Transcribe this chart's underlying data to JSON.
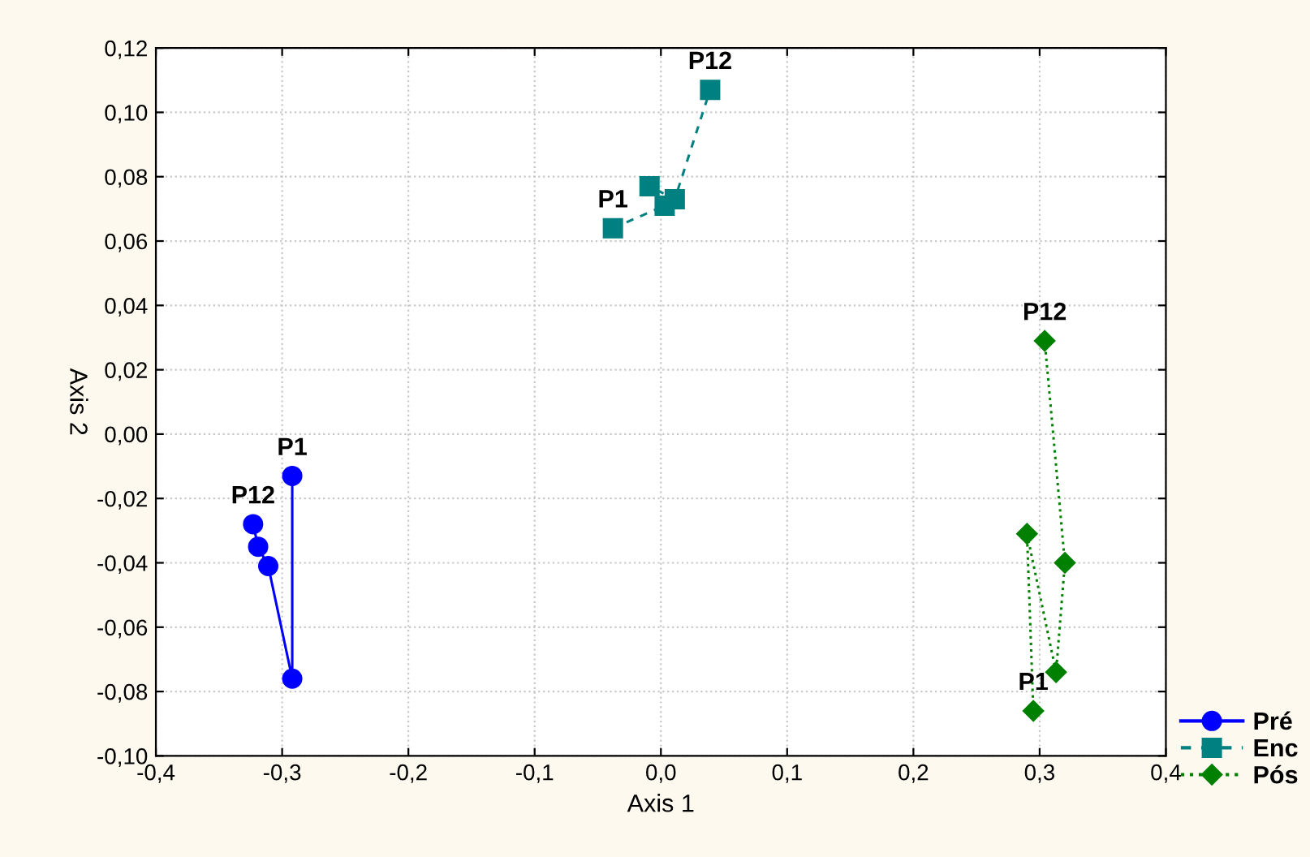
{
  "chart_data": {
    "type": "line",
    "xlabel": "Axis 1",
    "ylabel": "Axis 2",
    "xlim": [
      -0.4,
      0.4
    ],
    "xticks": [
      {
        "value": -0.4,
        "label": "-0,4"
      },
      {
        "value": -0.3,
        "label": "-0,3"
      },
      {
        "value": -0.2,
        "label": "-0,2"
      },
      {
        "value": -0.1,
        "label": "-0,1"
      },
      {
        "value": 0.0,
        "label": "0,0"
      },
      {
        "value": 0.1,
        "label": "0,1"
      },
      {
        "value": 0.2,
        "label": "0,2"
      },
      {
        "value": 0.3,
        "label": "0,3"
      },
      {
        "value": 0.4,
        "label": "0,4"
      }
    ],
    "ylim": [
      -0.1,
      0.12
    ],
    "yticks": [
      {
        "value": -0.1,
        "label": "-0,10"
      },
      {
        "value": -0.08,
        "label": "-0,08"
      },
      {
        "value": -0.06,
        "label": "-0,06"
      },
      {
        "value": -0.04,
        "label": "-0,04"
      },
      {
        "value": -0.02,
        "label": "-0,02"
      },
      {
        "value": 0.0,
        "label": "0,00"
      },
      {
        "value": 0.02,
        "label": "0,02"
      },
      {
        "value": 0.04,
        "label": "0,04"
      },
      {
        "value": 0.06,
        "label": "0,06"
      },
      {
        "value": 0.08,
        "label": "0,08"
      },
      {
        "value": 0.1,
        "label": "0,10"
      },
      {
        "value": 0.12,
        "label": "0,12"
      }
    ],
    "grid": true,
    "legend": "bottom right",
    "series": [
      {
        "name": "Pré",
        "color": "#0000ff",
        "marker": "circle",
        "line_style": "solid",
        "x": [
          -0.292,
          -0.292,
          -0.311,
          -0.319,
          -0.323
        ],
        "values": [
          -0.013,
          -0.076,
          -0.041,
          -0.035,
          -0.028
        ]
      },
      {
        "name": "Enc",
        "color": "#008080",
        "marker": "square",
        "line_style": "dashed",
        "x": [
          -0.038,
          0.003,
          -0.009,
          0.011,
          0.039
        ],
        "values": [
          0.064,
          0.071,
          0.077,
          0.073,
          0.107
        ]
      },
      {
        "name": "Pós",
        "color": "#008000",
        "marker": "diamond",
        "line_style": "dotted",
        "x": [
          0.295,
          0.29,
          0.313,
          0.32,
          0.304
        ],
        "values": [
          -0.086,
          -0.031,
          -0.074,
          -0.04,
          0.029
        ]
      }
    ],
    "annotations": [
      {
        "text": "P1",
        "x": -0.292,
        "y": -0.013
      },
      {
        "text": "P12",
        "x": -0.323,
        "y": -0.028
      },
      {
        "text": "P1",
        "x": -0.038,
        "y": 0.064
      },
      {
        "text": "P12",
        "x": 0.039,
        "y": 0.107
      },
      {
        "text": "P1",
        "x": 0.295,
        "y": -0.086
      },
      {
        "text": "P12",
        "x": 0.304,
        "y": 0.029
      }
    ]
  }
}
